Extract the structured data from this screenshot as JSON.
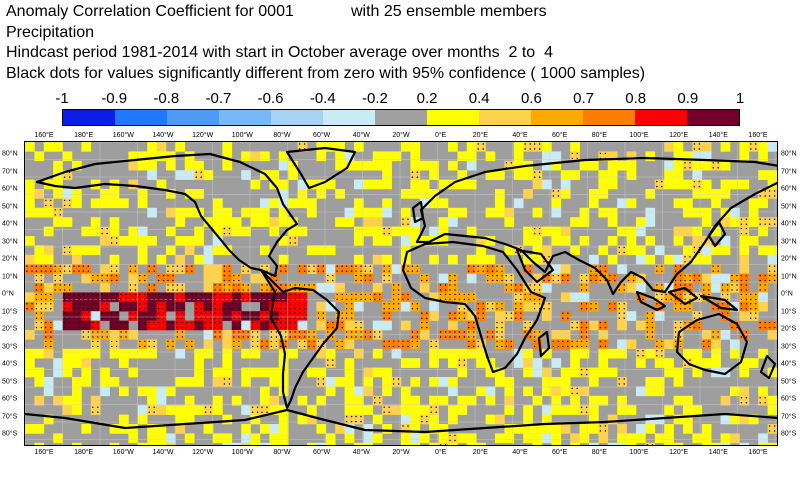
{
  "title": {
    "line1a": "Anomaly Correlation Coefficient for 0001",
    "line1b": "with 25 ensemble members",
    "line2": "Precipitation",
    "line3": "Hindcast period 1981-2014 with start in October average over months  2 to  4",
    "line4": "Black dots for values significantly different from zero with 95% confidence ( 1000 samples)"
  },
  "colorbar": {
    "labels": [
      "-1",
      "-0.9",
      "-0.8",
      "-0.7",
      "-0.6",
      "-0.4",
      "-0.2",
      "0.2",
      "0.4",
      "0.6",
      "0.7",
      "0.8",
      "0.9",
      "1"
    ],
    "colors": [
      "#0a1ee6",
      "#1f78ff",
      "#4f9af5",
      "#78b9f5",
      "#a5d2f5",
      "#c8ebf5",
      "#a0a0a0",
      "#ffff00",
      "#ffd24b",
      "#ffaa00",
      "#ff7d00",
      "#ff0000",
      "#730029"
    ]
  },
  "map": {
    "lon_labels": [
      "160°E",
      "180°E",
      "160°W",
      "140°W",
      "120°W",
      "100°W",
      "80°W",
      "60°W",
      "40°W",
      "20°W",
      "0°E",
      "20°E",
      "40°E",
      "60°E",
      "80°E",
      "100°E",
      "120°E",
      "140°E",
      "160°E"
    ],
    "lat_labels": [
      "80°N",
      "70°N",
      "60°N",
      "50°N",
      "40°N",
      "30°N",
      "20°N",
      "10°N",
      "0°N",
      "10°S",
      "20°S",
      "30°S",
      "40°S",
      "50°S",
      "60°S",
      "70°S",
      "80°S"
    ]
  }
}
